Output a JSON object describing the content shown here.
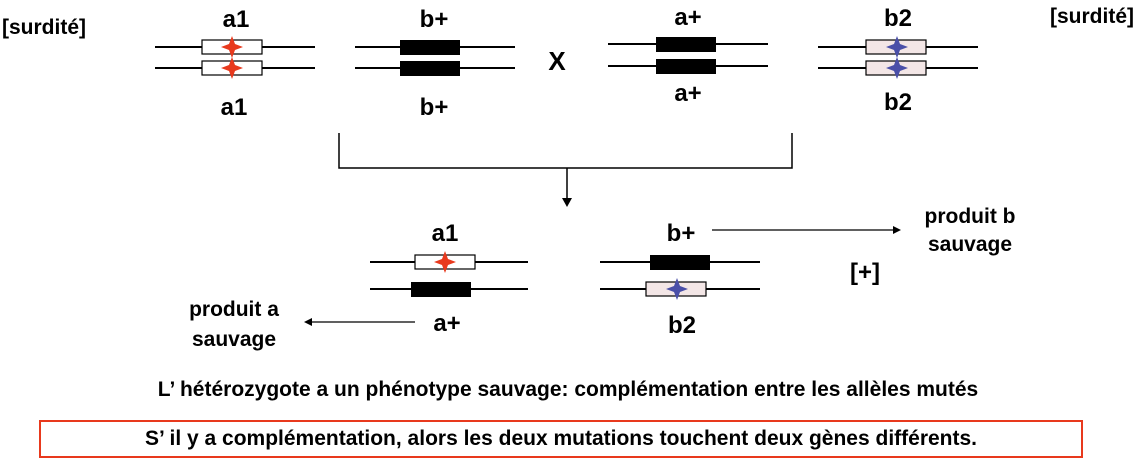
{
  "labels": {
    "phenotype_left": "[surdité]",
    "phenotype_right": "[surdité]",
    "cross_symbol": "X",
    "p1_a_top": "a1",
    "p1_a_bottom": "a1",
    "p1_b_top": "b+",
    "p1_b_bottom": "b+",
    "p2_a_top": "a+",
    "p2_a_bottom": "a+",
    "p2_b_top": "b2",
    "p2_b_bottom": "b2",
    "f1_a_top": "a1",
    "f1_a_bottom": "a+",
    "f1_b_top": "b+",
    "f1_b_bottom": "b2",
    "f1_phenotype": "[+]",
    "product_b_line1": "produit b",
    "product_b_line2": "sauvage",
    "product_a_line1": "produit a",
    "product_a_line2": "sauvage"
  },
  "conclusion": "L’ hétérozygote a un phénotype sauvage: complémentation entre les allèles mutés",
  "boxed_statement": "S’ il y a complémentation, alors les deux mutations touchent deux gènes différents.",
  "colors": {
    "mutation_a": "#e8391d",
    "mutation_b": "#4a4fa8",
    "box_border": "#e8391d",
    "mutant_box_fill_b2": "#f3e6e6"
  }
}
